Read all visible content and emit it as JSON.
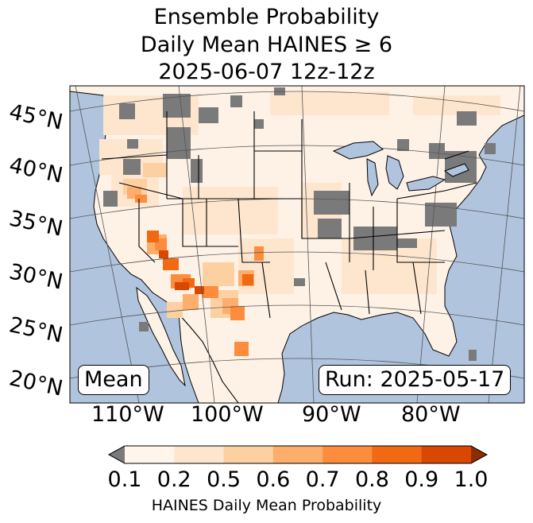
{
  "title": {
    "line1": "Ensemble Probability",
    "line2": "Daily Mean HAINES ≥ 6",
    "line3": "2025-06-07 12z-12z"
  },
  "map": {
    "lat_labels": [
      "45°N",
      "40°N",
      "35°N",
      "30°N",
      "25°N",
      "20°N"
    ],
    "lon_labels": [
      "110°W",
      "100°W",
      "90°W",
      "80°W"
    ],
    "mean_label": "Mean",
    "run_label": "Run: 2025-05-17",
    "colors": {
      "ocean": "#b0c4de",
      "land": "#fef2e6",
      "missing": "#7a7a7a",
      "border": "#000000",
      "gridline": "#555555"
    }
  },
  "colorbar": {
    "label": "HAINES Daily Mean Probability",
    "ticks": [
      "0.1",
      "0.2",
      "0.5",
      "0.6",
      "0.7",
      "0.8",
      "0.9",
      "1.0"
    ],
    "under_color": "#7a7a7a",
    "colors": [
      "#fff5eb",
      "#fee6ce",
      "#fdd0a2",
      "#fdae6b",
      "#fd8d3c",
      "#f16913",
      "#d94801",
      "#8c2d04"
    ]
  }
}
